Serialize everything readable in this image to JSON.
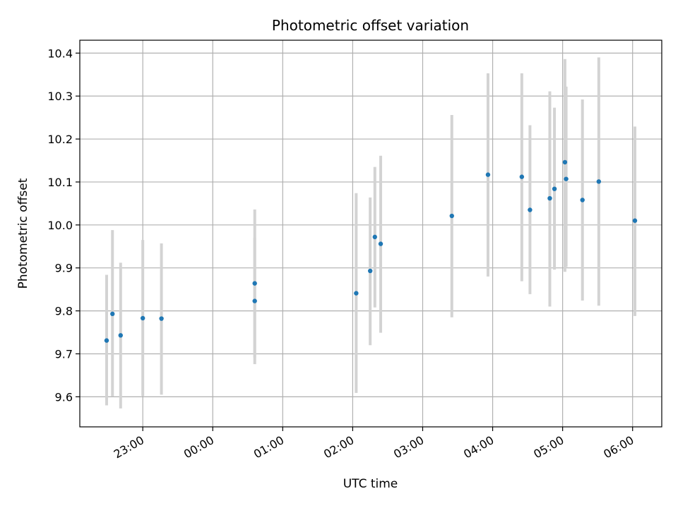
{
  "chart_data": {
    "type": "scatter",
    "title": "Photometric offset variation",
    "xlabel": "UTC time",
    "ylabel": "Photometric offset",
    "x_tick_labels": [
      "23:00",
      "00:00",
      "01:00",
      "02:00",
      "03:00",
      "04:00",
      "05:00",
      "06:00"
    ],
    "y_tick_labels": [
      "9.6",
      "9.7",
      "9.8",
      "9.9",
      "10.0",
      "10.1",
      "10.2",
      "10.3",
      "10.4"
    ],
    "y_ticks": [
      9.6,
      9.7,
      9.8,
      9.9,
      10.0,
      10.1,
      10.2,
      10.3,
      10.4
    ],
    "ylim": [
      9.53,
      10.43
    ],
    "xlim": [
      "22:06",
      "06:25"
    ],
    "x_day_rollover_after": "23:59",
    "grid": true,
    "point_color": "#1f77b4",
    "errorbar_color": "#d3d3d3",
    "series": [
      {
        "points": [
          {
            "x": "22:29",
            "y": 9.731,
            "lo": 9.58,
            "hi": 9.884
          },
          {
            "x": "22:34",
            "y": 9.793,
            "lo": 9.601,
            "hi": 9.988
          },
          {
            "x": "22:41",
            "y": 9.743,
            "lo": 9.573,
            "hi": 9.912
          },
          {
            "x": "23:00",
            "y": 9.783,
            "lo": 9.602,
            "hi": 9.965
          },
          {
            "x": "23:16",
            "y": 9.782,
            "lo": 9.605,
            "hi": 9.957
          },
          {
            "x": "00:36",
            "y": 9.823,
            "lo": 9.676,
            "hi": 9.97
          },
          {
            "x": "00:36",
            "y": 9.864,
            "lo": 9.692,
            "hi": 10.036
          },
          {
            "x": "02:03",
            "y": 9.841,
            "lo": 9.609,
            "hi": 10.074
          },
          {
            "x": "02:15",
            "y": 9.893,
            "lo": 9.72,
            "hi": 10.064
          },
          {
            "x": "02:19",
            "y": 9.972,
            "lo": 9.808,
            "hi": 10.135
          },
          {
            "x": "02:24",
            "y": 9.956,
            "lo": 9.749,
            "hi": 10.161
          },
          {
            "x": "03:25",
            "y": 10.021,
            "lo": 9.785,
            "hi": 10.256
          },
          {
            "x": "03:56",
            "y": 10.117,
            "lo": 9.88,
            "hi": 10.353
          },
          {
            "x": "04:25",
            "y": 10.112,
            "lo": 9.869,
            "hi": 10.353
          },
          {
            "x": "04:32",
            "y": 10.035,
            "lo": 9.839,
            "hi": 10.232
          },
          {
            "x": "04:49",
            "y": 10.062,
            "lo": 9.81,
            "hi": 10.311
          },
          {
            "x": "04:53",
            "y": 10.084,
            "lo": 9.896,
            "hi": 10.273
          },
          {
            "x": "05:02",
            "y": 10.146,
            "lo": 9.891,
            "hi": 10.386
          },
          {
            "x": "05:03",
            "y": 10.107,
            "lo": 9.902,
            "hi": 10.322
          },
          {
            "x": "05:17",
            "y": 10.058,
            "lo": 9.824,
            "hi": 10.292
          },
          {
            "x": "05:31",
            "y": 10.101,
            "lo": 9.812,
            "hi": 10.39
          },
          {
            "x": "06:02",
            "y": 10.01,
            "lo": 9.788,
            "hi": 10.229
          }
        ]
      }
    ]
  }
}
